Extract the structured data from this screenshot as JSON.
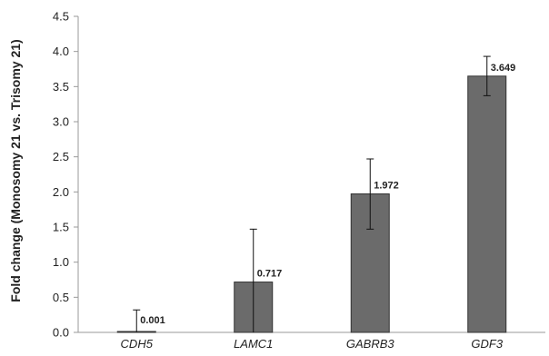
{
  "chart_data": {
    "type": "bar",
    "title": "",
    "xlabel": "",
    "ylabel": "Fold change (Monosomy 21 vs. Trisomy 21)",
    "categories": [
      "CDH5",
      "LAMC1",
      "GABRB3",
      "GDF3"
    ],
    "values": [
      0.001,
      0.717,
      1.972,
      3.649
    ],
    "error_upper": [
      0.32,
      1.47,
      2.47,
      3.93
    ],
    "error_lower": [
      0.0,
      0.0,
      1.47,
      3.37
    ],
    "data_labels": [
      "0.001",
      "0.717",
      "1.972",
      "3.649"
    ],
    "ylim": [
      0,
      4.5
    ],
    "yticks": [
      "0.0",
      "0.5",
      "1.0",
      "1.5",
      "2.0",
      "2.5",
      "3.0",
      "3.5",
      "4.0",
      "4.5"
    ],
    "ytick_values": [
      0,
      0.5,
      1.0,
      1.5,
      2.0,
      2.5,
      3.0,
      3.5,
      4.0,
      4.5
    ],
    "grid": false,
    "legend": "none",
    "bar_color": "#6b6b6b",
    "bar_edge_color": "#333333",
    "axis_color": "#999999"
  }
}
